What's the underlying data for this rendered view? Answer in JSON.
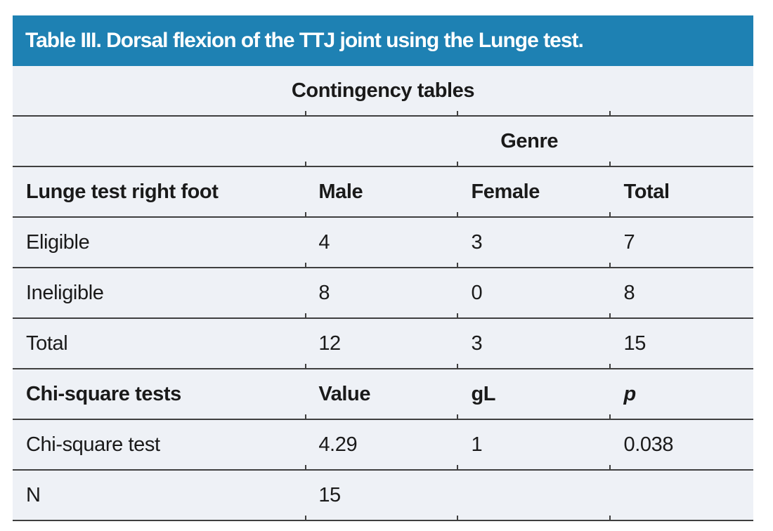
{
  "figure": {
    "title": "Table III. Dorsal flexion of the TTJ joint using the Lunge test.",
    "subtitle": "Contingency tables",
    "group_header": "Genre"
  },
  "contingency": {
    "header": [
      "Lunge test right foot",
      "Male",
      "Female",
      "Total"
    ],
    "rows": [
      [
        "Eligible",
        "4",
        "3",
        "7"
      ],
      [
        "Ineligible",
        "8",
        "0",
        "8"
      ],
      [
        "Total",
        "12",
        "3",
        "15"
      ]
    ]
  },
  "chi_square": {
    "header": [
      "Chi-square tests",
      "Value",
      "gL",
      "p"
    ],
    "rows": [
      [
        "Chi-square test",
        "4.29",
        "1",
        "0.038"
      ],
      [
        "N",
        "15",
        "",
        ""
      ]
    ]
  },
  "colors": {
    "header_bg": "#1e81b3",
    "row_bg": "#eef1f6",
    "rule": "#3f3f3f",
    "text": "#1a1a1a",
    "title_text": "#ffffff"
  }
}
